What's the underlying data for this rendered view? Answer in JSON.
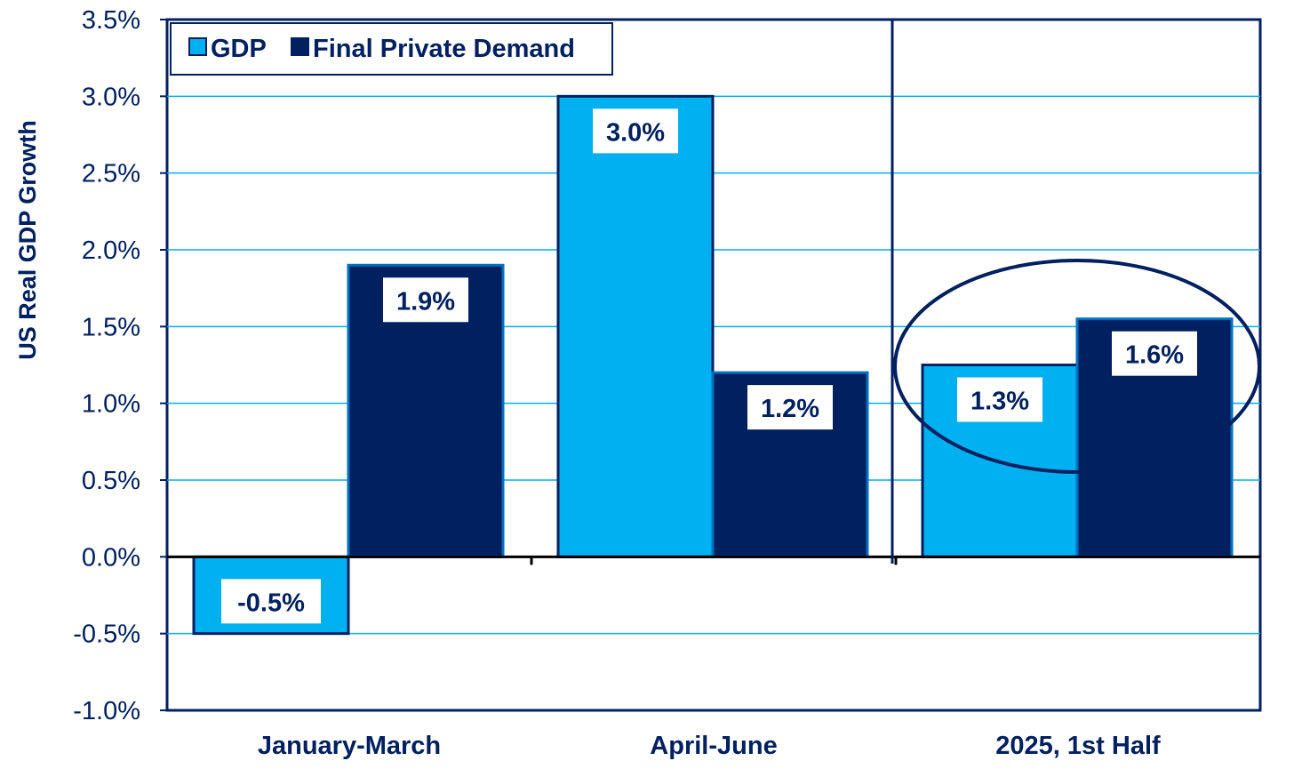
{
  "chart_data": {
    "type": "bar",
    "categories": [
      "January-March",
      "April-June",
      "2025, 1st Half"
    ],
    "series": [
      {
        "name": "GDP",
        "values": [
          -0.5,
          3.0,
          1.25
        ],
        "labels": [
          "-0.5%",
          "3.0%",
          "1.3%"
        ],
        "color": "#00B0F0"
      },
      {
        "name": "Final Private Demand",
        "values": [
          1.9,
          1.2,
          1.55
        ],
        "labels": [
          "1.9%",
          "1.2%",
          "1.6%"
        ],
        "color": "#002060"
      }
    ],
    "title": "",
    "xlabel": "",
    "ylabel": "US Real GDP Growth",
    "ylim": [
      -1.0,
      3.5
    ],
    "yticks": [
      "3.5%",
      "3.0%",
      "2.5%",
      "2.0%",
      "1.5%",
      "1.0%",
      "0.5%",
      "0.0%",
      "-0.5%",
      "-1.0%"
    ],
    "ytick_values": [
      3.5,
      3.0,
      2.5,
      2.0,
      1.5,
      1.0,
      0.5,
      0.0,
      -0.5,
      -1.0
    ],
    "grid": true,
    "gridline_color": "#00B0F0",
    "legend": "top-left",
    "annotation": "ellipse highlighting 2025, 1st Half"
  }
}
